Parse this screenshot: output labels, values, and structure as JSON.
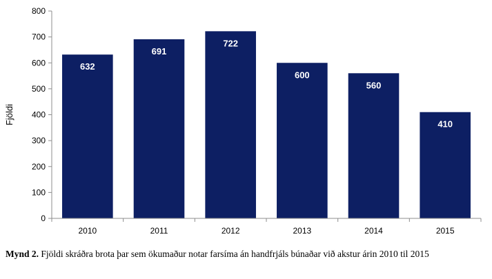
{
  "chart_data": {
    "type": "bar",
    "categories": [
      "2010",
      "2011",
      "2012",
      "2013",
      "2014",
      "2015"
    ],
    "values": [
      632,
      691,
      722,
      600,
      560,
      410
    ],
    "data_labels": [
      "632",
      "691",
      "722",
      "600",
      "560",
      "410"
    ],
    "title": "",
    "xlabel": "",
    "ylabel": "Fjöldi",
    "ylim": [
      0,
      800
    ],
    "yticks": [
      "0",
      "100",
      "200",
      "300",
      "400",
      "500",
      "600",
      "700",
      "800"
    ],
    "bar_color": "#0d1f63",
    "grid": false,
    "legend": "none"
  },
  "caption": {
    "label": "Mynd 2.",
    "text": "Fjöldi skráðra brota þar sem ökumaður notar farsíma án handfrjáls búnaðar við akstur árin 2010 til 2015"
  }
}
